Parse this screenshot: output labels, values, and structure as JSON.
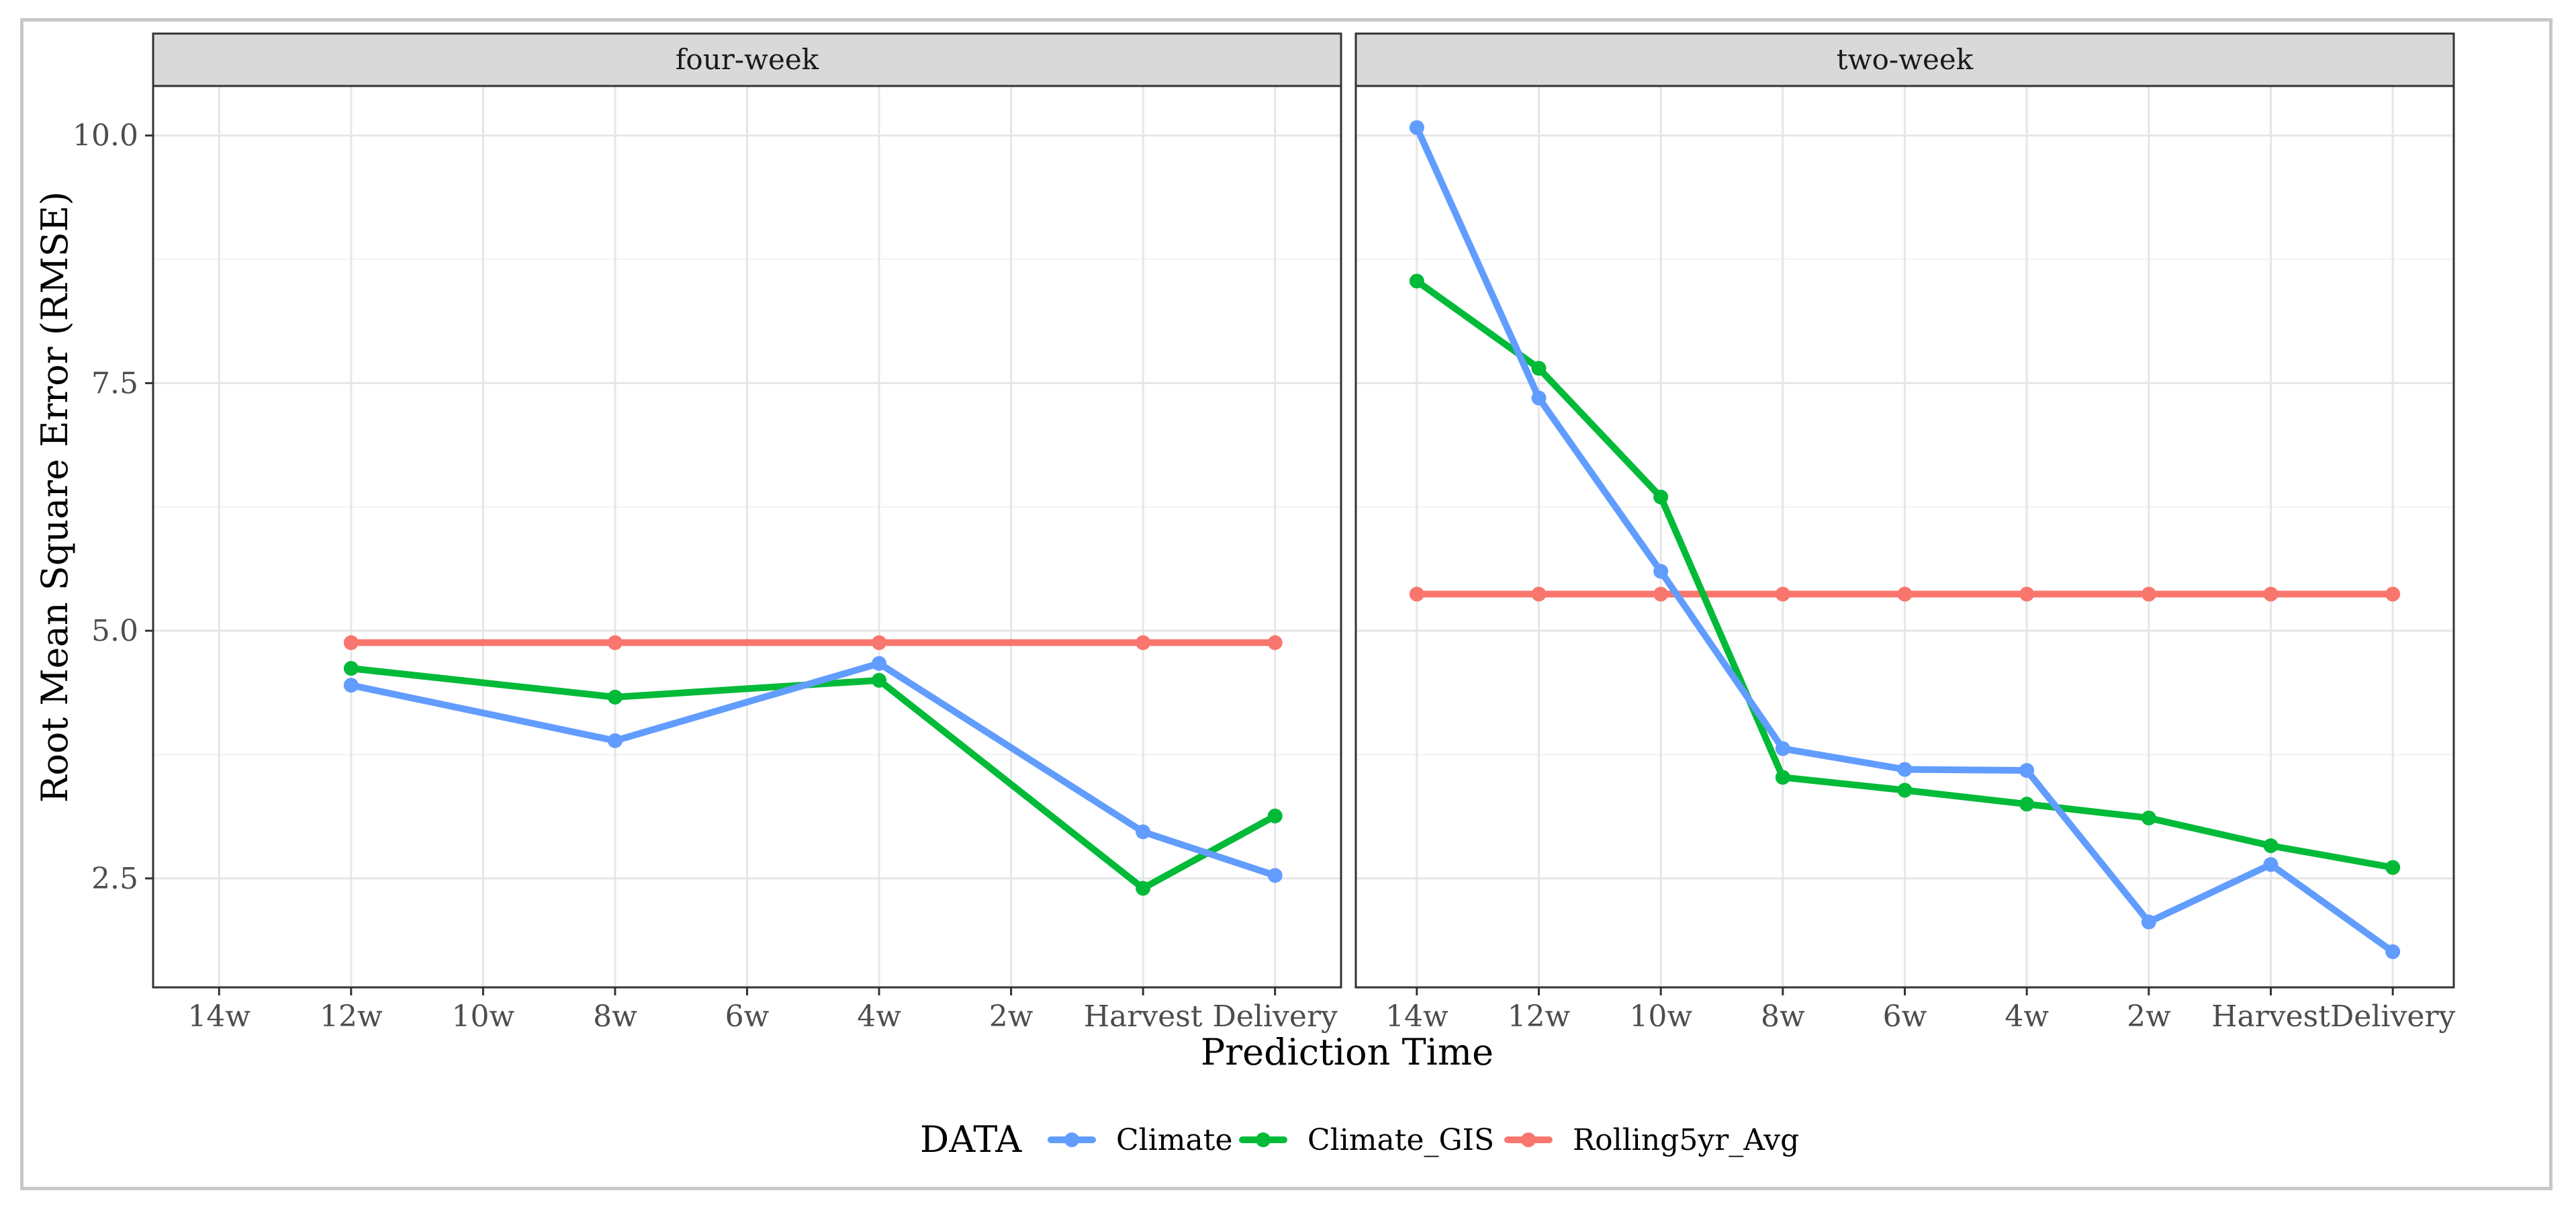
{
  "chart_data": {
    "type": "line",
    "facet_variable": "horizon",
    "ylabel": "Root Mean Square Error (RMSE)",
    "xlabel": "Prediction Time",
    "ylim": [
      1.4,
      10.5
    ],
    "yticks": [
      2.5,
      5.0,
      7.5,
      10.0
    ],
    "ytick_labels": [
      "2.5",
      "5.0",
      "7.5",
      "10.0"
    ],
    "categories": [
      "14w",
      "12w",
      "10w",
      "8w",
      "6w",
      "4w",
      "2w",
      "Harvest",
      "Delivery"
    ],
    "legend": {
      "title": "DATA",
      "position": "bottom",
      "entries": [
        {
          "name": "Climate",
          "color": "#619CFF"
        },
        {
          "name": "Climate_GIS",
          "color": "#00BA38"
        },
        {
          "name": "Rolling5yr_Avg",
          "color": "#F8766D"
        }
      ]
    },
    "panels": [
      {
        "title": "four-week",
        "series": [
          {
            "name": "Rolling5yr_Avg",
            "color": "#F8766D",
            "points": [
              {
                "x": "12w",
                "y": 4.88
              },
              {
                "x": "8w",
                "y": 4.88
              },
              {
                "x": "4w",
                "y": 4.88
              },
              {
                "x": "Harvest",
                "y": 4.88
              },
              {
                "x": "Delivery",
                "y": 4.88
              }
            ]
          },
          {
            "name": "Climate_GIS",
            "color": "#00BA38",
            "points": [
              {
                "x": "12w",
                "y": 4.62
              },
              {
                "x": "8w",
                "y": 4.33
              },
              {
                "x": "4w",
                "y": 4.5
              },
              {
                "x": "Harvest",
                "y": 2.4
              },
              {
                "x": "Delivery",
                "y": 3.13
              }
            ]
          },
          {
            "name": "Climate",
            "color": "#619CFF",
            "points": [
              {
                "x": "12w",
                "y": 4.45
              },
              {
                "x": "8w",
                "y": 3.89
              },
              {
                "x": "4w",
                "y": 4.67
              },
              {
                "x": "Harvest",
                "y": 2.97
              },
              {
                "x": "Delivery",
                "y": 2.53
              }
            ]
          }
        ]
      },
      {
        "title": "two-week",
        "series": [
          {
            "name": "Rolling5yr_Avg",
            "color": "#F8766D",
            "points": [
              {
                "x": "14w",
                "y": 5.37
              },
              {
                "x": "12w",
                "y": 5.37
              },
              {
                "x": "10w",
                "y": 5.37
              },
              {
                "x": "8w",
                "y": 5.37
              },
              {
                "x": "6w",
                "y": 5.37
              },
              {
                "x": "4w",
                "y": 5.37
              },
              {
                "x": "2w",
                "y": 5.37
              },
              {
                "x": "Harvest",
                "y": 5.37
              },
              {
                "x": "Delivery",
                "y": 5.37
              }
            ]
          },
          {
            "name": "Climate_GIS",
            "color": "#00BA38",
            "points": [
              {
                "x": "14w",
                "y": 8.53
              },
              {
                "x": "12w",
                "y": 7.65
              },
              {
                "x": "10w",
                "y": 6.35
              },
              {
                "x": "8w",
                "y": 3.52
              },
              {
                "x": "6w",
                "y": 3.39
              },
              {
                "x": "4w",
                "y": 3.25
              },
              {
                "x": "2w",
                "y": 3.11
              },
              {
                "x": "Harvest",
                "y": 2.83
              },
              {
                "x": "Delivery",
                "y": 2.61
              }
            ]
          },
          {
            "name": "Climate",
            "color": "#619CFF",
            "points": [
              {
                "x": "14w",
                "y": 10.08
              },
              {
                "x": "12w",
                "y": 7.35
              },
              {
                "x": "10w",
                "y": 5.6
              },
              {
                "x": "8w",
                "y": 3.81
              },
              {
                "x": "6w",
                "y": 3.6
              },
              {
                "x": "4w",
                "y": 3.59
              },
              {
                "x": "2w",
                "y": 2.06
              },
              {
                "x": "Harvest",
                "y": 2.64
              },
              {
                "x": "Delivery",
                "y": 1.76
              }
            ]
          }
        ]
      }
    ]
  }
}
